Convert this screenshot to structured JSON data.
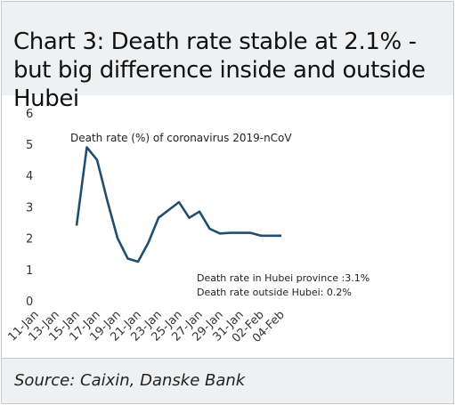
{
  "chart_data": {
    "type": "line",
    "title": "Chart 3: Death rate stable at 2.1% - but big difference inside and outside Hubei",
    "source": "Source: Caixin, Danske Bank",
    "xlabel": "",
    "ylabel": "",
    "ylim": [
      0,
      6
    ],
    "yticks": [
      "0",
      "1",
      "2",
      "3",
      "4",
      "5",
      "6"
    ],
    "xticks": [
      "11-Jan",
      "13-Jan",
      "15-Jan",
      "17-Jan",
      "19-Jan",
      "21-Jan",
      "23-Jan",
      "25-Jan",
      "27-Jan",
      "29-Jan",
      "31-Jan",
      "02-Feb",
      "04-Feb"
    ],
    "grid": false,
    "series": [
      {
        "name": "Death rate (%) of coronavirus 2019-nCoV",
        "color": "#1f4e6e",
        "x": [
          "15-Jan",
          "16-Jan",
          "17-Jan",
          "18-Jan",
          "19-Jan",
          "20-Jan",
          "21-Jan",
          "22-Jan",
          "23-Jan",
          "24-Jan",
          "25-Jan",
          "26-Jan",
          "27-Jan",
          "28-Jan",
          "29-Jan",
          "30-Jan",
          "31-Jan",
          "01-Feb",
          "02-Feb",
          "03-Feb",
          "04-Feb"
        ],
        "values": [
          2.4,
          4.9,
          4.5,
          3.2,
          2.0,
          1.35,
          1.25,
          1.85,
          2.65,
          2.9,
          3.15,
          2.65,
          2.85,
          2.3,
          2.15,
          2.17,
          2.17,
          2.17,
          2.08,
          2.08,
          2.08
        ]
      }
    ],
    "annotations": [
      "Death rate (%) of coronavirus 2019-nCoV",
      "Death rate in Hubei province :3.1%",
      "Death rate outside Hubei: 0.2%"
    ]
  }
}
